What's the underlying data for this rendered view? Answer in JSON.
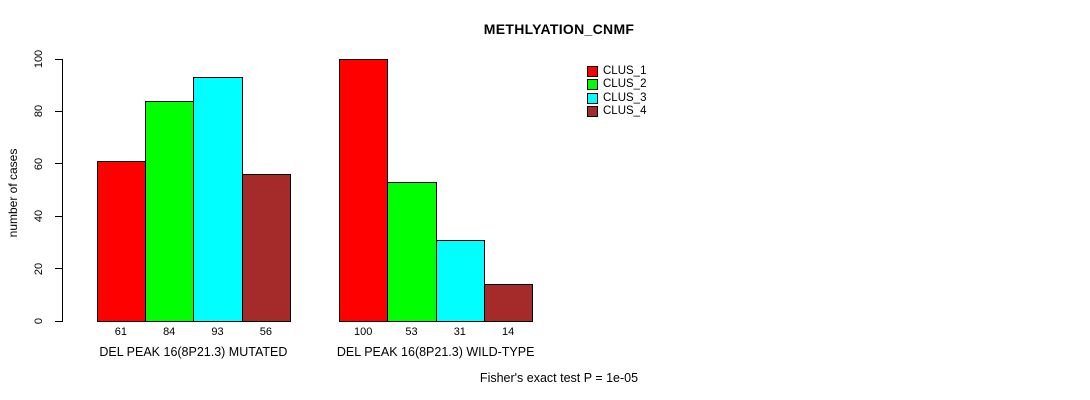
{
  "title": "METHLYATION_CNMF",
  "chart_data": {
    "type": "bar",
    "title": "METHLYATION_CNMF",
    "xlabel": "",
    "ylabel": "number of cases",
    "ylim": [
      0,
      100
    ],
    "yticks": [
      0,
      20,
      40,
      60,
      80,
      100
    ],
    "grid": false,
    "categories": [
      "DEL PEAK 16(8P21.3) MUTATED",
      "DEL PEAK 16(8P21.3) WILD-TYPE"
    ],
    "series": [
      {
        "name": "CLUS_1",
        "color": "#FF0000",
        "values": [
          61,
          100
        ]
      },
      {
        "name": "CLUS_2",
        "color": "#00FF00",
        "values": [
          84,
          53
        ]
      },
      {
        "name": "CLUS_3",
        "color": "#00FFFF",
        "values": [
          93,
          31
        ]
      },
      {
        "name": "CLUS_4",
        "color": "#A52A2A",
        "values": [
          56,
          14
        ]
      }
    ],
    "value_labels_shown": true,
    "legend_position": "top-right",
    "legend_entries": [
      "CLUS_1",
      "CLUS_2",
      "CLUS_3",
      "CLUS_4"
    ],
    "annotation": "Fisher's exact test P = 1e-05"
  },
  "colors": {
    "background": "#FFFFFF",
    "axis": "#000000",
    "text": "#000000",
    "clus_1": "#FF0000",
    "clus_2": "#00FF00",
    "clus_3": "#00FFFF",
    "clus_4": "#A52A2A"
  }
}
